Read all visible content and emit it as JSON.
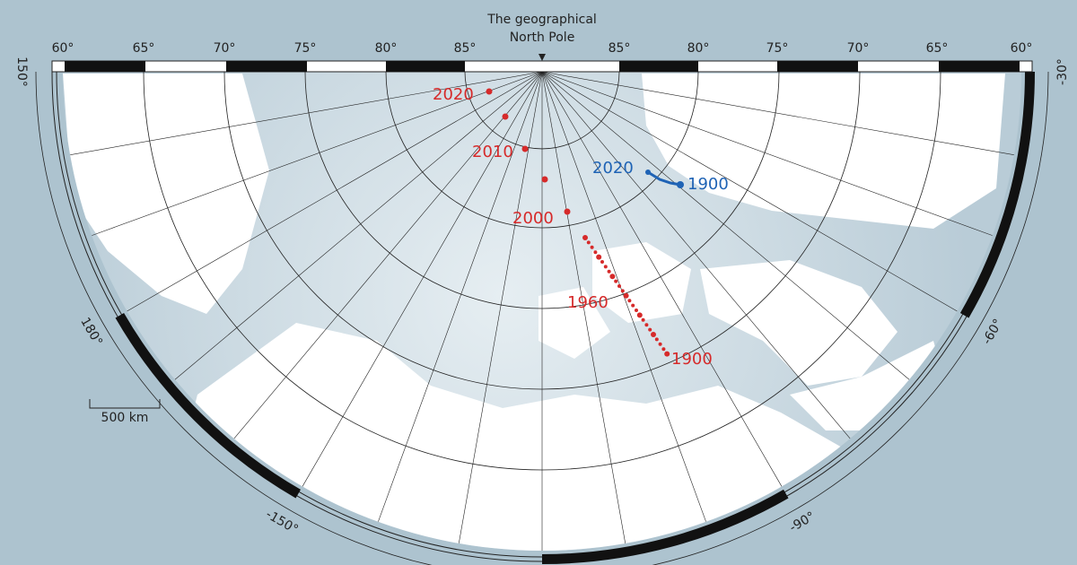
{
  "pole_label": "The geographical North Pole",
  "latitude_labels_left": [
    "60°",
    "65°",
    "70°",
    "75°",
    "80°",
    "85°"
  ],
  "latitude_labels_right": [
    "85°",
    "80°",
    "75°",
    "70°",
    "65°",
    "60°"
  ],
  "longitude_labels": [
    "150°",
    "180°",
    "-150°",
    "-90°",
    "-60°",
    "-30°"
  ],
  "scale_label": "500 km",
  "south_pole_path": {
    "labels": [
      "2020",
      "2010",
      "2000",
      "1960",
      "1900"
    ]
  },
  "north_pole_path": {
    "labels": [
      "2020",
      "1900"
    ]
  }
}
